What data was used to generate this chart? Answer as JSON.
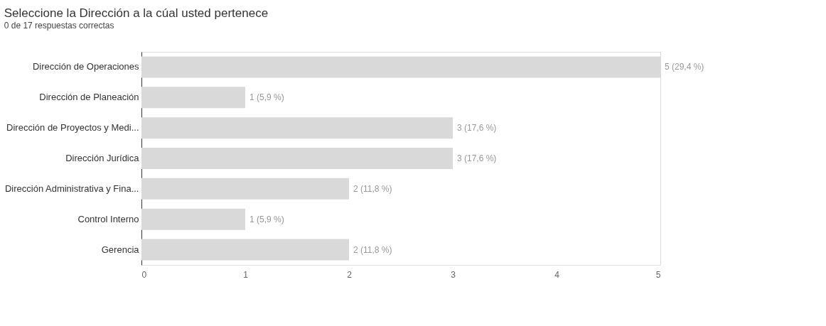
{
  "chart_data": {
    "type": "bar",
    "orientation": "horizontal",
    "title": "Seleccione la Dirección a la cúal usted pertenece",
    "subtitle": "0 de 17 respuestas correctas",
    "categories": [
      "Dirección de Operaciones",
      "Dirección de Planeación",
      "Dirección de Proyectos y Medi...",
      "Dirección Jurídica",
      "Dirección Administrativa y Fina...",
      "Control Interno",
      "Gerencia"
    ],
    "values": [
      5,
      1,
      3,
      3,
      2,
      1,
      2
    ],
    "value_labels": [
      "5 (29,4 %)",
      "1 (5,9 %)",
      "3 (17,6 %)",
      "3 (17,6 %)",
      "2 (11,8 %)",
      "1 (5,9 %)",
      "2 (11,8 %)"
    ],
    "color": "#d9d9d9",
    "xlim": [
      0,
      5
    ],
    "xticks": [
      0,
      1,
      2,
      3,
      4,
      5
    ],
    "grid": false
  }
}
